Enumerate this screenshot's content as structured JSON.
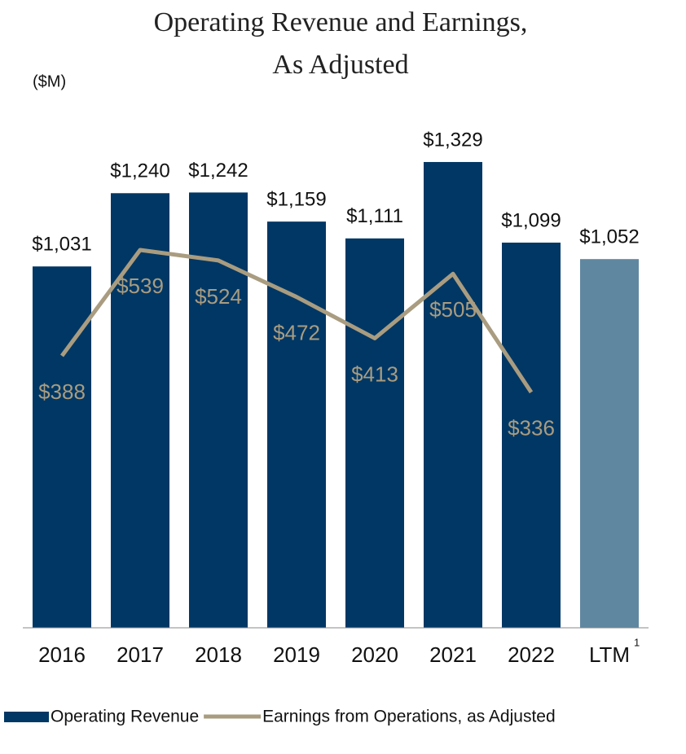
{
  "chart_data": {
    "type": "bar_line",
    "title": [
      "Operating Revenue and Earnings,",
      "As Adjusted"
    ],
    "unit_label": "($M)",
    "categories": [
      "2016",
      "2017",
      "2018",
      "2019",
      "2020",
      "2021",
      "2022",
      "LTM"
    ],
    "category_footnote": {
      "index": 7,
      "marker": "1"
    },
    "series": [
      {
        "name": "Operating Revenue",
        "type": "bar",
        "color": "#003764",
        "colors": [
          "#003764",
          "#003764",
          "#003764",
          "#003764",
          "#003764",
          "#003764",
          "#003764",
          "#5f87a0"
        ],
        "values": [
          1031,
          1240,
          1242,
          1159,
          1111,
          1329,
          1099,
          1052
        ],
        "value_labels": [
          "$1,031",
          "$1,240",
          "$1,242",
          "$1,159",
          "$1,111",
          "$1,329",
          "$1,099",
          "$1,052"
        ]
      },
      {
        "name": "Earnings from Operations, as Adjusted",
        "type": "line",
        "axis": "y2",
        "color": "#a99c80",
        "values": [
          388,
          539,
          524,
          472,
          413,
          505,
          336,
          null
        ],
        "value_labels": [
          "$388",
          "$539",
          "$524",
          "$472",
          "$413",
          "$505",
          "$336",
          null
        ]
      }
    ],
    "ylim": [
      0,
      1400
    ],
    "y2lim": [
      0,
      700
    ],
    "legend": "bottom"
  }
}
